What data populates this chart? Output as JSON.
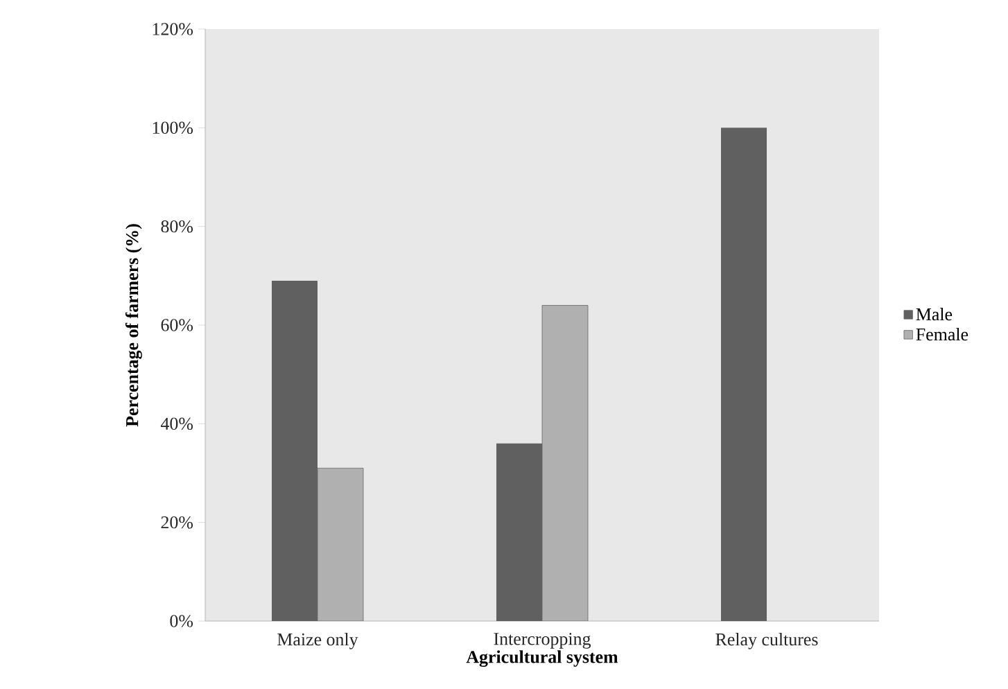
{
  "chart_data": {
    "type": "bar",
    "xlabel": "Agricultural system",
    "ylabel": "Percentage of farmers (%)",
    "categories": [
      "Maize only",
      "Intercropping",
      "Relay cultures"
    ],
    "series": [
      {
        "name": "Male",
        "color": "#606060",
        "values": [
          69,
          36,
          100
        ]
      },
      {
        "name": "Female",
        "color": "#b0b0b0",
        "values": [
          31,
          64,
          null
        ]
      }
    ],
    "ylim": [
      0,
      120
    ],
    "yticks": [
      {
        "value": 0,
        "label": "0%"
      },
      {
        "value": 20,
        "label": "20%"
      },
      {
        "value": 40,
        "label": "40%"
      },
      {
        "value": 60,
        "label": "60%"
      },
      {
        "value": 80,
        "label": "80%"
      },
      {
        "value": 100,
        "label": "100%"
      },
      {
        "value": 120,
        "label": "120%"
      }
    ],
    "legend": "right",
    "grid": false
  }
}
